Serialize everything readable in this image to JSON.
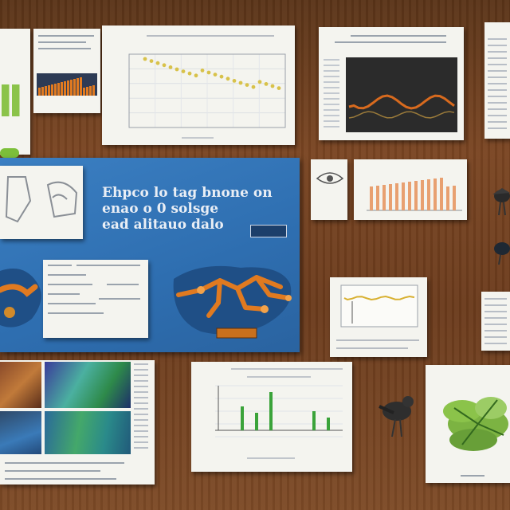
{
  "board": {
    "headline_lines": [
      "Ehpco lo tag bnone on",
      "enao o 0 solsge",
      "ead alitauo dalo"
    ],
    "badge": "",
    "photo_label": "",
    "footer_caption": ""
  },
  "colors": {
    "wood": "#6b3b1c",
    "panel_blue": "#2e6eb0",
    "paper": "#f4f4ef",
    "orange": "#e07a20",
    "green": "#3aa33a",
    "dark_slide": "#2b2b2b"
  },
  "chart_data": [
    {
      "type": "scatter",
      "title": "",
      "series": [],
      "grid": true
    },
    {
      "type": "bar",
      "title": "",
      "grid": true
    },
    {
      "type": "line",
      "title": "",
      "grid": true
    },
    {
      "type": "bar",
      "title": "",
      "grid": false
    },
    {
      "type": "line",
      "title": "",
      "grid": true
    }
  ],
  "icons": [
    "bird-icon",
    "plant-icon",
    "map-icon"
  ]
}
